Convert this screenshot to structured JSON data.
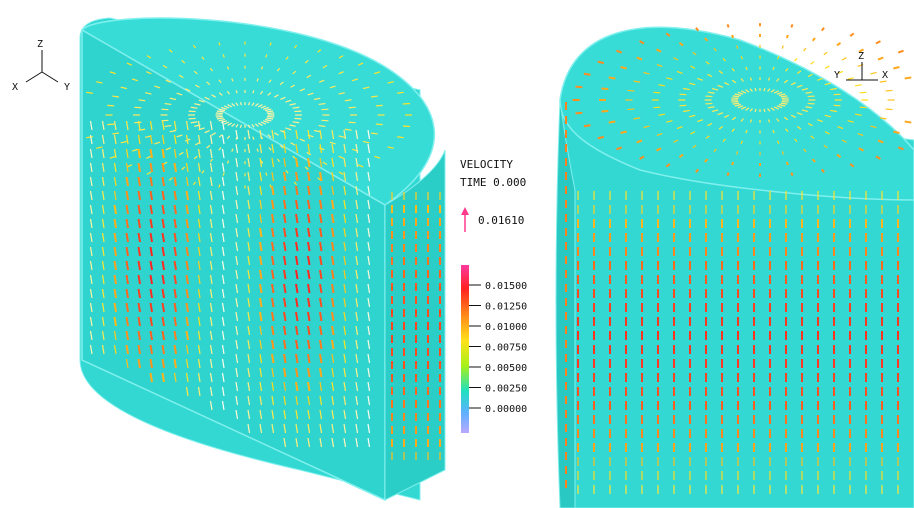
{
  "legend": {
    "title": "VELOCITY",
    "time_label": "TIME 0.000",
    "reference_vector_value": "0.01610",
    "ticks": [
      "0.01500",
      "0.01250",
      "0.01000",
      "0.00750",
      "0.00500",
      "0.00250",
      "0.00000"
    ],
    "colorbar_stops": [
      "#ff3aa0",
      "#ff2020",
      "#ff8a1a",
      "#ffe11a",
      "#a8f01a",
      "#20e0c0",
      "#5fb0ff",
      "#b9a8ff"
    ],
    "reference_arrow_color": "#ff3a8c"
  },
  "left_axes": {
    "z": "Z",
    "x": "X",
    "y": "Y"
  },
  "right_axes": {
    "y": "Y",
    "z": "Z",
    "x": "X"
  },
  "colors": {
    "cylinder_fill": "#33d8d2",
    "cylinder_fill_dark": "#22c8c2",
    "edge": "#7ff0ee",
    "vector_low": "#ffffff",
    "vector_mid": "#ffe11a",
    "vector_high": "#ff2020"
  }
}
